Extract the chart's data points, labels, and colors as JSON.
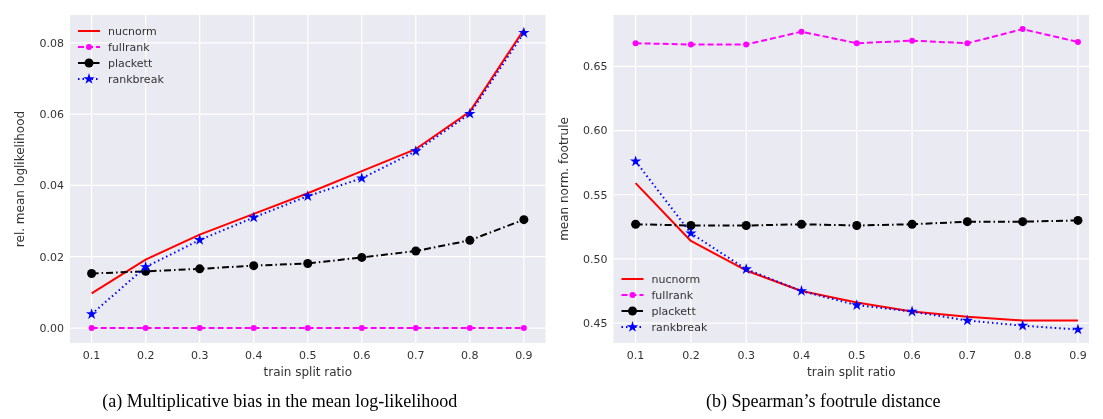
{
  "chart_data": [
    {
      "type": "line",
      "xlabel": "train split ratio",
      "ylabel": "rel. mean loglikelihood",
      "annotations": [
        "(a) Multiplicative bias in the mean log-likelihood"
      ],
      "x": [
        0.1,
        0.2,
        0.3,
        0.4,
        0.5,
        0.6,
        0.7,
        0.8,
        0.9
      ],
      "xlim": [
        0.06,
        0.94
      ],
      "xticks": [
        0.1,
        0.2,
        0.3,
        0.4,
        0.5,
        0.6,
        0.7,
        0.8,
        0.9
      ],
      "ylim": [
        -0.0042,
        0.0878
      ],
      "yticks": [
        {
          "value": 0,
          "label": "0.00"
        },
        {
          "value": 0.02,
          "label": "0.02"
        },
        {
          "value": 0.04,
          "label": "0.04"
        },
        {
          "value": 0.06,
          "label": "0.06"
        },
        {
          "value": 0.08,
          "label": "0.08"
        }
      ],
      "grid": true,
      "legend": "top left",
      "series": [
        {
          "name": "nucnorm",
          "color": "#ff0000",
          "line_style": "solid",
          "marker": "none",
          "values": [
            0.0097,
            0.0192,
            0.0262,
            0.032,
            0.0378,
            0.044,
            0.0502,
            0.0607,
            0.0837
          ]
        },
        {
          "name": "fullrank",
          "color": "#ff00ff",
          "line_style": "dashed",
          "marker": "circle",
          "values": [
            0,
            0,
            0,
            0,
            0,
            0,
            0,
            0,
            0
          ]
        },
        {
          "name": "plackett",
          "color": "#000000",
          "line_style": "dashdot",
          "marker": "circle",
          "values": [
            0.0153,
            0.0159,
            0.0166,
            0.0175,
            0.0181,
            0.0198,
            0.0216,
            0.0246,
            0.0304
          ]
        },
        {
          "name": "rankbreak",
          "color": "#0000ff",
          "line_style": "dotted",
          "marker": "star",
          "values": [
            0.0039,
            0.0171,
            0.0247,
            0.031,
            0.037,
            0.042,
            0.0496,
            0.0601,
            0.0828
          ]
        }
      ]
    },
    {
      "type": "line",
      "xlabel": "train split ratio",
      "ylabel": "mean norm. footrule",
      "annotations": [
        "(b) Spearman’s footrule distance"
      ],
      "x": [
        0.1,
        0.2,
        0.3,
        0.4,
        0.5,
        0.6,
        0.7,
        0.8,
        0.9
      ],
      "xlim": [
        0.06,
        0.92
      ],
      "xticks": [
        0.1,
        0.2,
        0.3,
        0.4,
        0.5,
        0.6,
        0.7,
        0.8,
        0.9
      ],
      "ylim": [
        0.4345,
        0.69
      ],
      "yticks": [
        {
          "value": 0.45,
          "label": "0.45"
        },
        {
          "value": 0.5,
          "label": "0.50"
        },
        {
          "value": 0.55,
          "label": "0.55"
        },
        {
          "value": 0.6,
          "label": "0.60"
        },
        {
          "value": 0.65,
          "label": "0.65"
        }
      ],
      "grid": true,
      "legend": "bottom left",
      "series": [
        {
          "name": "nucnorm",
          "color": "#ff0000",
          "line_style": "solid",
          "marker": "none",
          "values": [
            0.559,
            0.514,
            0.491,
            0.475,
            0.466,
            0.459,
            0.455,
            0.452,
            0.452
          ]
        },
        {
          "name": "fullrank",
          "color": "#ff00ff",
          "line_style": "dashed",
          "marker": "circle",
          "values": [
            0.668,
            0.667,
            0.667,
            0.677,
            0.668,
            0.67,
            0.668,
            0.679,
            0.669
          ]
        },
        {
          "name": "plackett",
          "color": "#000000",
          "line_style": "dashdot",
          "marker": "circle",
          "values": [
            0.527,
            0.526,
            0.526,
            0.527,
            0.526,
            0.527,
            0.529,
            0.529,
            0.53
          ]
        },
        {
          "name": "rankbreak",
          "color": "#0000ff",
          "line_style": "dotted",
          "marker": "star",
          "values": [
            0.576,
            0.52,
            0.492,
            0.475,
            0.464,
            0.459,
            0.452,
            0.448,
            0.445
          ]
        }
      ]
    }
  ]
}
